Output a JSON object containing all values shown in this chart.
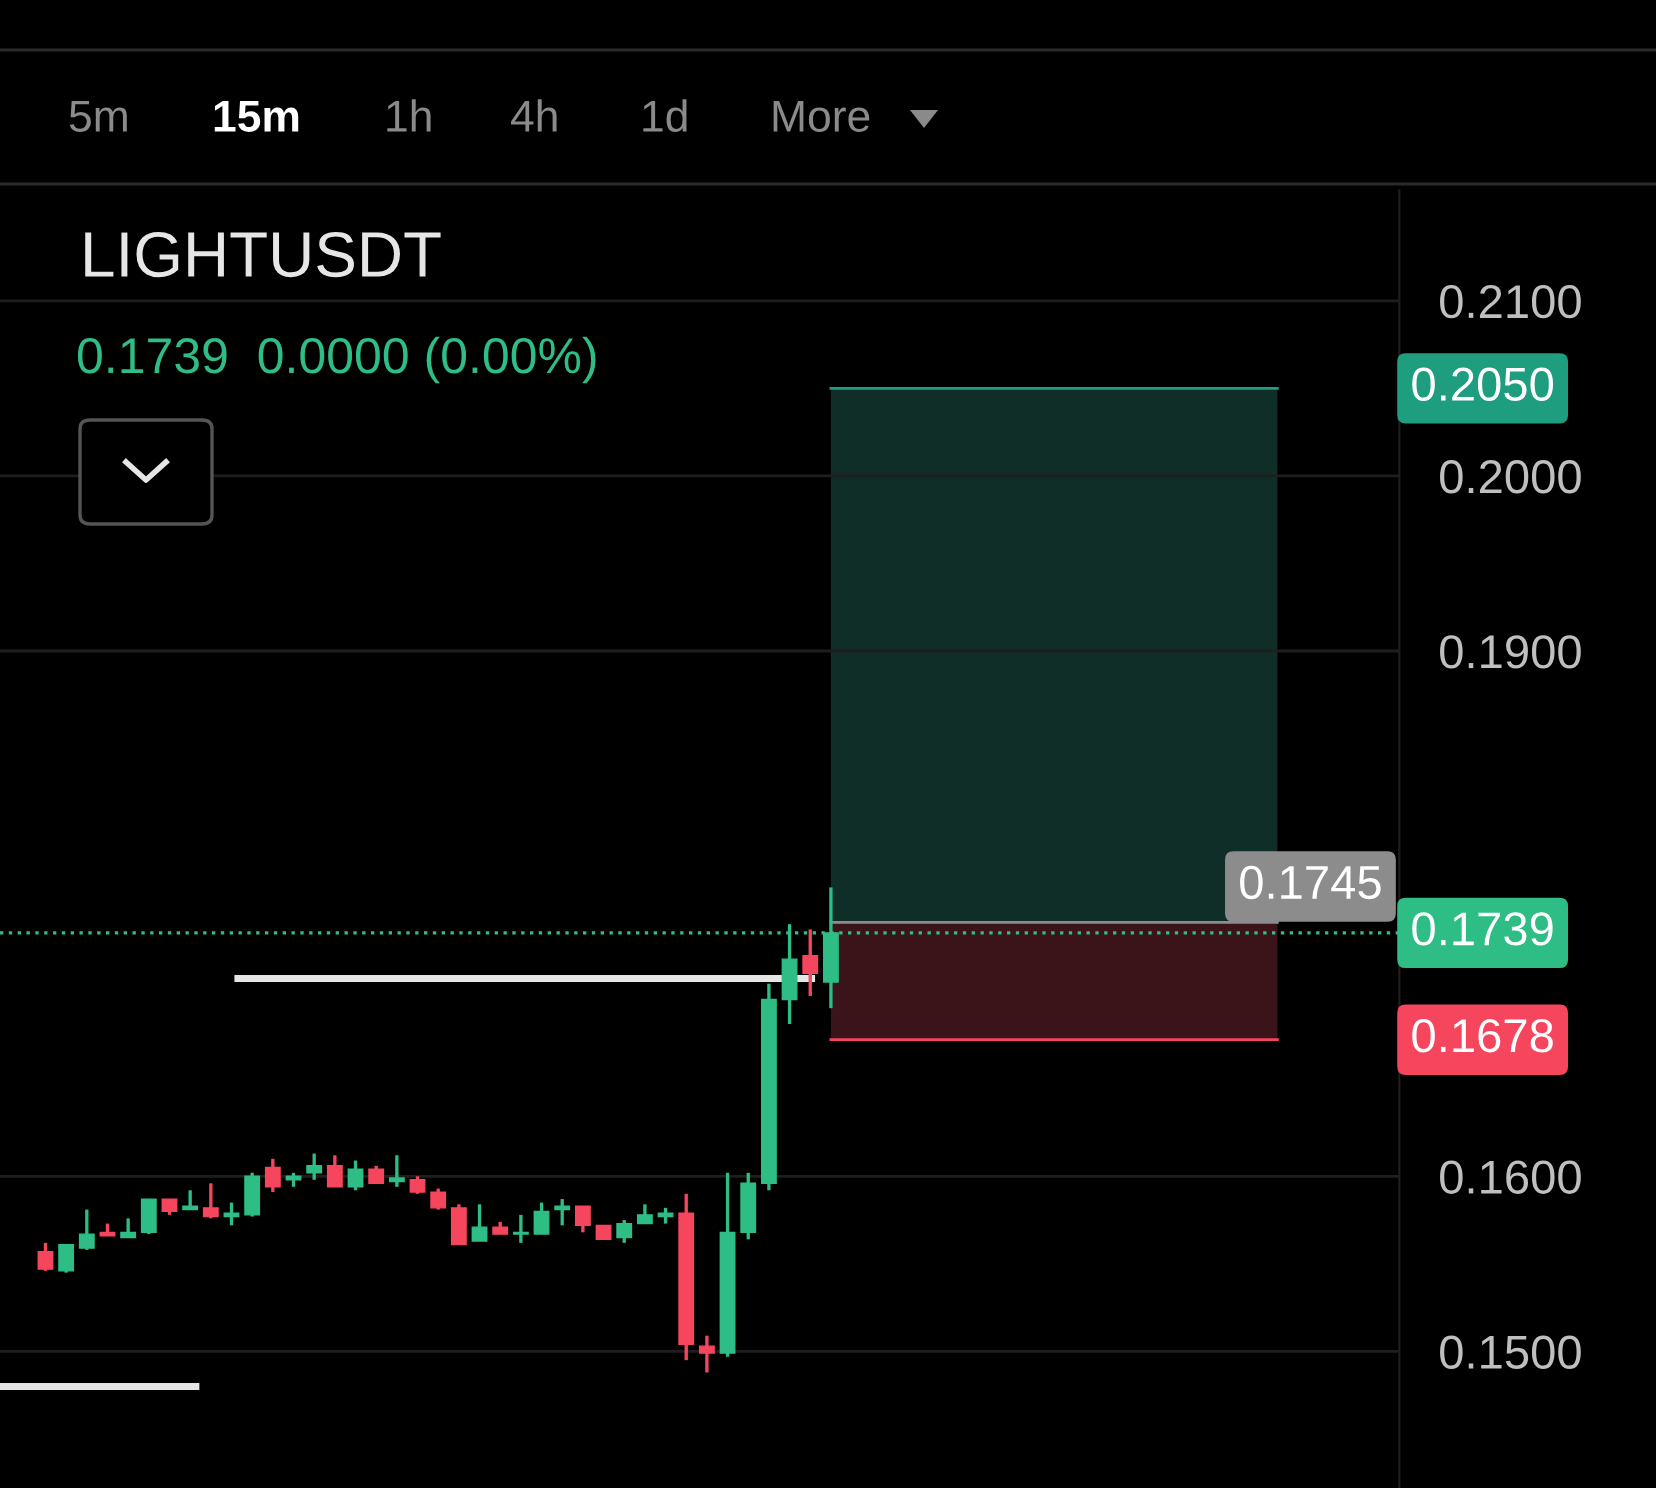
{
  "chart_data": {
    "type": "candlestick",
    "title": "LIGHTUSDT",
    "subtitle": "0.1739  0.0000 (0.00%)",
    "annotations": [
      "5m",
      "15m",
      "1h",
      "4h",
      "1d",
      "More"
    ],
    "categories": [
      null,
      null,
      null,
      null,
      null,
      null,
      null,
      null,
      null,
      null,
      null,
      null,
      null,
      null,
      null,
      null,
      null,
      null,
      null,
      null,
      null,
      null,
      null,
      null,
      null,
      null,
      null,
      null,
      null,
      null,
      null,
      null,
      null,
      null,
      null,
      null,
      null,
      null,
      null,
      null,
      null,
      null,
      null,
      null,
      null,
      null,
      null,
      null,
      null,
      null,
      null,
      null,
      null,
      null,
      null,
      null,
      null,
      null,
      null,
      null,
      null,
      null,
      null,
      null,
      null,
      null
    ],
    "ohlc": [
      [
        0.1557,
        0.1562,
        0.1546,
        0.1547
      ],
      [
        0.1546,
        0.1561,
        0.1545,
        0.1561
      ],
      [
        0.1559,
        0.1581,
        0.1558,
        0.1567
      ],
      [
        0.1568,
        0.1573,
        0.1566,
        0.1566
      ],
      [
        0.1565,
        0.1576,
        0.1565,
        0.1568
      ],
      [
        0.1568,
        0.1587,
        0.1567,
        0.1587
      ],
      [
        0.1587,
        0.1587,
        0.1578,
        0.158
      ],
      [
        0.1581,
        0.1592,
        0.1581,
        0.1583
      ],
      [
        0.1582,
        0.1596,
        0.1576,
        0.1577
      ],
      [
        0.1577,
        0.1585,
        0.1572,
        0.1579
      ],
      [
        0.1578,
        0.1602,
        0.1577,
        0.16
      ],
      [
        0.1605,
        0.161,
        0.1591,
        0.1594
      ],
      [
        0.1598,
        0.1602,
        0.1594,
        0.16
      ],
      [
        0.1602,
        0.1613,
        0.1598,
        0.1606
      ],
      [
        0.1606,
        0.1612,
        0.1594,
        0.1594
      ],
      [
        0.1594,
        0.1609,
        0.1592,
        0.1604
      ],
      [
        0.1604,
        0.1606,
        0.1596,
        0.1596
      ],
      [
        0.1597,
        0.1612,
        0.1594,
        0.1599
      ],
      [
        0.1598,
        0.16,
        0.159,
        0.1591
      ],
      [
        0.1591,
        0.1593,
        0.1581,
        0.1582
      ],
      [
        0.1582,
        0.1584,
        0.1561,
        0.1561
      ],
      [
        0.1563,
        0.1584,
        0.1563,
        0.1571
      ],
      [
        0.1571,
        0.1574,
        0.1567,
        0.1567
      ],
      [
        0.1567,
        0.1578,
        0.1562,
        0.1568
      ],
      [
        0.1567,
        0.1585,
        0.1567,
        0.158
      ],
      [
        0.1581,
        0.1587,
        0.1572,
        0.1583
      ],
      [
        0.1583,
        0.1583,
        0.1568,
        0.1572
      ],
      [
        0.1572,
        0.1572,
        0.1564,
        0.1564
      ],
      [
        0.1565,
        0.1575,
        0.1562,
        0.1573
      ],
      [
        0.1573,
        0.1584,
        0.1573,
        0.1578
      ],
      [
        0.1577,
        0.1582,
        0.1573,
        0.1579
      ],
      [
        0.1579,
        0.159,
        0.1495,
        0.1504
      ],
      [
        0.1503,
        0.1509,
        0.1488,
        0.1499
      ],
      [
        0.1499,
        0.1602,
        0.1497,
        0.1568
      ],
      [
        0.1568,
        0.1602,
        0.1564,
        0.1596
      ],
      [
        0.1596,
        0.171,
        0.1592,
        0.1701
      ],
      [
        0.1701,
        0.1744,
        0.1687,
        0.1724
      ],
      [
        0.1726,
        0.1741,
        0.1703,
        0.1716
      ],
      [
        0.1711,
        0.1765,
        0.1696,
        0.1739
      ],
      null,
      null,
      null,
      null,
      null,
      null,
      null,
      null,
      null,
      null,
      null,
      null,
      null,
      null,
      null,
      null,
      null,
      null,
      null,
      null,
      null,
      null,
      null,
      null,
      null,
      null,
      null
    ],
    "colors": [
      "#f6465d",
      "#2ebd85",
      "#2ebd85",
      "#f6465d",
      "#2ebd85",
      "#2ebd85",
      "#f6465d",
      "#2ebd85",
      "#f6465d",
      "#2ebd85",
      "#2ebd85",
      "#f6465d",
      "#2ebd85",
      "#2ebd85",
      "#f6465d",
      "#2ebd85",
      "#f6465d",
      "#2ebd85",
      "#f6465d",
      "#f6465d",
      "#f6465d",
      "#2ebd85",
      "#f6465d",
      "#2ebd85",
      "#2ebd85",
      "#2ebd85",
      "#f6465d",
      "#f6465d",
      "#2ebd85",
      "#2ebd85",
      "#2ebd85",
      "#f6465d",
      "#f6465d",
      "#2ebd85",
      "#2ebd85",
      "#2ebd85",
      "#2ebd85",
      "#f6465d",
      "#2ebd85",
      null,
      null,
      null,
      null,
      null,
      null,
      null,
      null,
      null,
      null,
      null,
      null,
      null,
      null,
      null,
      null,
      null,
      null,
      null,
      null,
      null,
      null,
      null,
      null,
      null,
      null,
      null
    ],
    "ylim": [
      0.1422,
      0.2163
    ],
    "yticks": [
      {
        "value": 0.15,
        "label": "0.1500"
      },
      {
        "value": 0.16,
        "label": "0.1600"
      },
      {
        "value": 0.19,
        "label": "0.1900"
      },
      {
        "value": 0.2,
        "label": "0.2000"
      },
      {
        "value": 0.21,
        "label": "0.2100"
      }
    ],
    "grid": "y",
    "bands": [
      {
        "axis": "y",
        "from": 0.1745,
        "to": 0.205,
        "color": "#0f2e27"
      },
      {
        "axis": "y",
        "from": 0.1678,
        "to": 0.1745,
        "color": "#3a1419"
      }
    ],
    "ref_lines": [
      {
        "axis": "y",
        "value": 0.205,
        "label": "0.2050",
        "color": "#1e9e7e",
        "line_style": "solid"
      },
      {
        "axis": "y",
        "value": 0.1745,
        "label": "0.1745",
        "color": "#8c8c8c",
        "line_style": "solid"
      },
      {
        "axis": "y",
        "value": 0.1739,
        "label": "0.1739",
        "color": "#2ebd85",
        "line_style": "dotted"
      },
      {
        "axis": "y",
        "value": 0.1678,
        "label": "0.1678",
        "color": "#f6465d",
        "line_style": "solid"
      },
      {
        "axis": "y",
        "value": 0.1713,
        "color": "#e6e6e6",
        "line_style": "solid"
      },
      {
        "axis": "y",
        "value": 0.148,
        "color": "#e6e6e6",
        "line_style": "solid"
      }
    ]
  }
}
